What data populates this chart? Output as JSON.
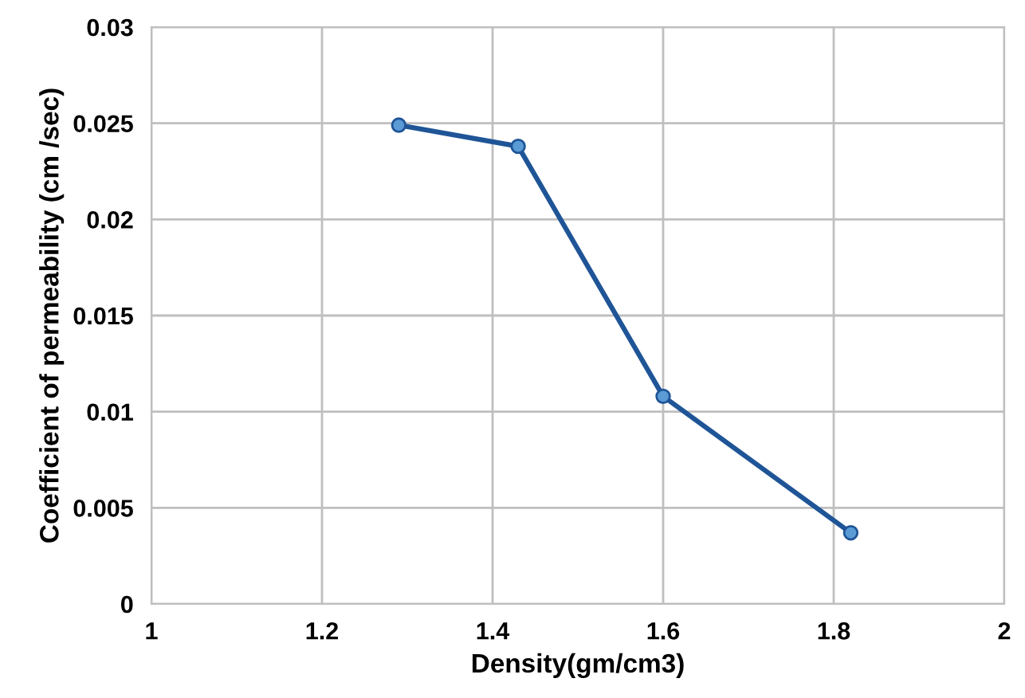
{
  "chart_data": {
    "type": "line",
    "xlabel": "Density(gm/cm3)",
    "ylabel": "Coefficient of permeability (cm /sec)",
    "x": [
      1.29,
      1.43,
      1.6,
      1.82
    ],
    "series": [
      {
        "color": "#1f5597",
        "values": [
          0.0249,
          0.0238,
          0.0108,
          0.0037
        ]
      }
    ],
    "xlim": [
      1,
      2
    ],
    "xticks": [
      1,
      1.2,
      1.4,
      1.6,
      1.8,
      2
    ],
    "ylim": [
      0,
      0.03
    ],
    "yticks": [
      0,
      0.005,
      0.01,
      0.015,
      0.02,
      0.025,
      0.03
    ],
    "grid": true,
    "marker": "circle",
    "line_style": "solid"
  }
}
